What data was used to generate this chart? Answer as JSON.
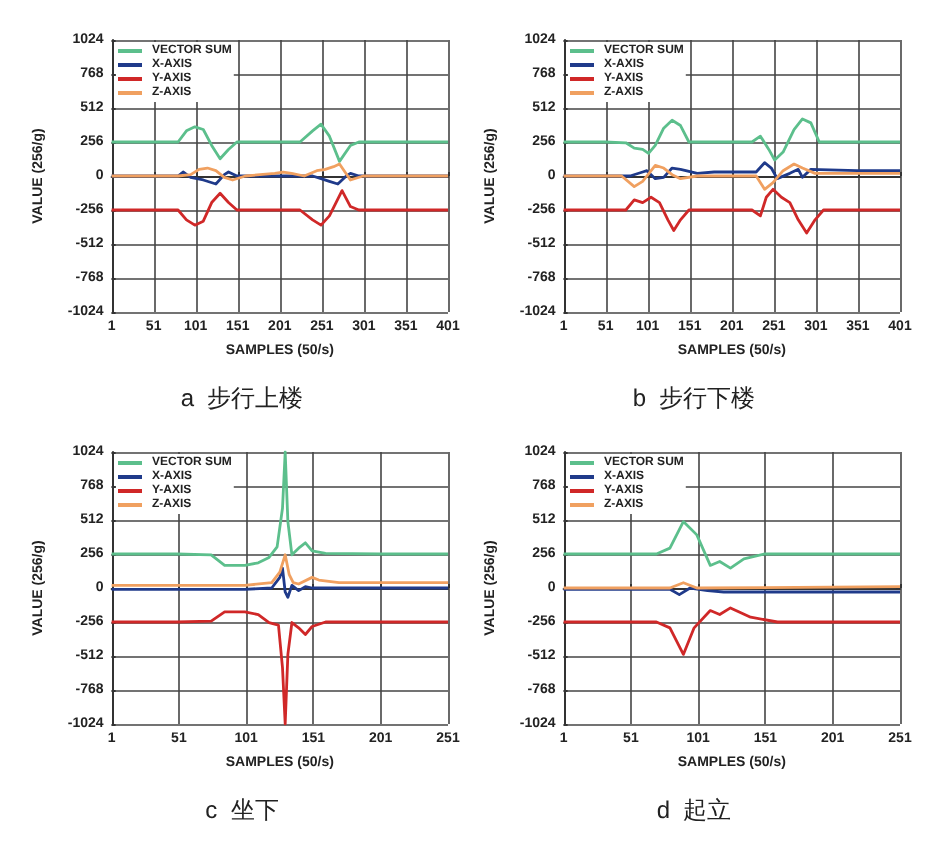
{
  "chart_data": [
    {
      "type": "line",
      "title": "a  步行上楼",
      "xlabel": "SAMPLES (50/s)",
      "ylabel": "VALUE (256/g)",
      "xlim": [
        1,
        401
      ],
      "xticks": [
        1,
        51,
        101,
        151,
        201,
        251,
        301,
        351,
        401
      ],
      "ylim": [
        -1024,
        1024
      ],
      "yticks": [
        -1024,
        -768,
        -512,
        -256,
        0,
        256,
        512,
        768,
        1024
      ],
      "grid": true,
      "legend": "top left",
      "marker": "none",
      "series": [
        {
          "name": "VECTOR SUM",
          "color": "#5cbf8c",
          "x": [
            1,
            50,
            80,
            90,
            100,
            110,
            120,
            130,
            140,
            150,
            200,
            225,
            240,
            250,
            260,
            272,
            285,
            295,
            350,
            401
          ],
          "values": [
            256,
            256,
            256,
            340,
            370,
            350,
            230,
            130,
            200,
            256,
            256,
            256,
            340,
            390,
            300,
            110,
            230,
            256,
            256,
            256
          ]
        },
        {
          "name": "X-AXIS",
          "color": "#1f3a8a",
          "x": [
            1,
            50,
            80,
            86,
            95,
            110,
            125,
            135,
            140,
            150,
            200,
            240,
            250,
            260,
            270,
            280,
            285,
            295,
            350,
            401
          ],
          "values": [
            0,
            0,
            0,
            30,
            -10,
            -30,
            -60,
            10,
            30,
            0,
            0,
            0,
            -20,
            -40,
            -60,
            0,
            20,
            0,
            0,
            0
          ]
        },
        {
          "name": "Y-AXIS",
          "color": "#d02828",
          "x": [
            1,
            50,
            80,
            90,
            100,
            110,
            120,
            130,
            140,
            150,
            200,
            225,
            240,
            250,
            260,
            275,
            285,
            295,
            350,
            401
          ],
          "values": [
            -256,
            -256,
            -256,
            -330,
            -370,
            -340,
            -200,
            -130,
            -200,
            -256,
            -256,
            -256,
            -330,
            -370,
            -300,
            -110,
            -230,
            -256,
            -256,
            -256
          ]
        },
        {
          "name": "Z-AXIS",
          "color": "#f0a060",
          "x": [
            1,
            50,
            80,
            95,
            105,
            115,
            125,
            135,
            145,
            160,
            195,
            205,
            215,
            230,
            245,
            255,
            265,
            272,
            285,
            300,
            401
          ],
          "values": [
            0,
            0,
            0,
            10,
            50,
            60,
            40,
            -10,
            -30,
            0,
            20,
            30,
            20,
            0,
            40,
            50,
            70,
            90,
            -30,
            0,
            0
          ]
        }
      ]
    },
    {
      "type": "line",
      "title": "b  步行下楼",
      "xlabel": "SAMPLES (50/s)",
      "ylabel": "VALUE (256/g)",
      "xlim": [
        1,
        401
      ],
      "xticks": [
        1,
        51,
        101,
        151,
        201,
        251,
        301,
        351,
        401
      ],
      "ylim": [
        -1024,
        1024
      ],
      "yticks": [
        -1024,
        -768,
        -512,
        -256,
        0,
        256,
        512,
        768,
        1024
      ],
      "grid": true,
      "legend": "top left",
      "marker": "none",
      "series": [
        {
          "name": "VECTOR SUM",
          "color": "#5cbf8c",
          "x": [
            1,
            50,
            75,
            85,
            95,
            102,
            110,
            120,
            130,
            140,
            150,
            200,
            225,
            235,
            245,
            252,
            262,
            275,
            285,
            295,
            305,
            350,
            401
          ],
          "values": [
            256,
            256,
            250,
            210,
            200,
            170,
            230,
            360,
            420,
            380,
            256,
            256,
            256,
            300,
            200,
            120,
            180,
            350,
            430,
            400,
            256,
            256,
            256
          ]
        },
        {
          "name": "X-AXIS",
          "color": "#1f3a8a",
          "x": [
            1,
            50,
            80,
            95,
            100,
            110,
            120,
            130,
            140,
            160,
            180,
            230,
            240,
            248,
            255,
            270,
            280,
            285,
            295,
            350,
            401
          ],
          "values": [
            0,
            0,
            0,
            30,
            40,
            -20,
            -10,
            60,
            50,
            20,
            30,
            30,
            100,
            60,
            -20,
            20,
            50,
            -10,
            50,
            40,
            40
          ]
        },
        {
          "name": "Y-AXIS",
          "color": "#d02828",
          "x": [
            1,
            50,
            75,
            85,
            95,
            105,
            115,
            125,
            132,
            140,
            150,
            200,
            225,
            235,
            242,
            250,
            260,
            270,
            280,
            290,
            300,
            310,
            350,
            401
          ],
          "values": [
            -256,
            -256,
            -256,
            -180,
            -200,
            -160,
            -200,
            -330,
            -410,
            -330,
            -256,
            -256,
            -256,
            -300,
            -160,
            -100,
            -160,
            -200,
            -330,
            -430,
            -330,
            -256,
            -256,
            -256
          ]
        },
        {
          "name": "Z-AXIS",
          "color": "#f0a060",
          "x": [
            1,
            50,
            70,
            85,
            95,
            110,
            120,
            130,
            140,
            160,
            200,
            230,
            240,
            250,
            262,
            275,
            285,
            300,
            350,
            401
          ],
          "values": [
            0,
            0,
            0,
            -80,
            -40,
            80,
            60,
            10,
            -20,
            0,
            0,
            0,
            -100,
            -50,
            40,
            90,
            60,
            20,
            20,
            20
          ]
        }
      ]
    },
    {
      "type": "line",
      "title": "c  坐下",
      "xlabel": "SAMPLES (50/s)",
      "ylabel": "VALUE (256/g)",
      "xlim": [
        1,
        251
      ],
      "xticks": [
        1,
        51,
        101,
        151,
        201,
        251
      ],
      "ylim": [
        -1024,
        1024
      ],
      "yticks": [
        -1024,
        -768,
        -512,
        -256,
        0,
        256,
        512,
        768,
        1024
      ],
      "grid": true,
      "legend": "top left",
      "marker": "none",
      "series": [
        {
          "name": "VECTOR SUM",
          "color": "#5cbf8c",
          "x": [
            1,
            50,
            75,
            85,
            100,
            110,
            118,
            124,
            128,
            130,
            132,
            135,
            140,
            145,
            150,
            160,
            200,
            251
          ],
          "values": [
            256,
            256,
            250,
            170,
            170,
            190,
            230,
            310,
            600,
            1024,
            500,
            250,
            300,
            340,
            280,
            260,
            256,
            256
          ]
        },
        {
          "name": "X-AXIS",
          "color": "#1f3a8a",
          "x": [
            1,
            50,
            100,
            120,
            126,
            128,
            130,
            132,
            135,
            140,
            145,
            150,
            251
          ],
          "values": [
            -10,
            -10,
            -10,
            0,
            80,
            150,
            -30,
            -70,
            20,
            -20,
            10,
            0,
            0
          ]
        },
        {
          "name": "Y-AXIS",
          "color": "#d02828",
          "x": [
            1,
            50,
            75,
            85,
            100,
            110,
            118,
            125,
            128,
            130,
            132,
            135,
            140,
            145,
            150,
            160,
            200,
            251
          ],
          "values": [
            -256,
            -256,
            -250,
            -180,
            -180,
            -200,
            -260,
            -280,
            -600,
            -1024,
            -500,
            -260,
            -300,
            -350,
            -290,
            -256,
            -256,
            -256
          ]
        },
        {
          "name": "Z-AXIS",
          "color": "#f0a060",
          "x": [
            1,
            50,
            100,
            120,
            126,
            130,
            133,
            136,
            140,
            150,
            155,
            170,
            251
          ],
          "values": [
            20,
            20,
            20,
            40,
            120,
            250,
            100,
            40,
            30,
            80,
            60,
            40,
            40
          ]
        }
      ]
    },
    {
      "type": "line",
      "title": "d  起立",
      "xlabel": "SAMPLES (50/s)",
      "ylabel": "VALUE (256/g)",
      "xlim": [
        1,
        251
      ],
      "xticks": [
        1,
        51,
        101,
        151,
        201,
        251
      ],
      "ylim": [
        -1024,
        1024
      ],
      "yticks": [
        -1024,
        -768,
        -512,
        -256,
        0,
        256,
        512,
        768,
        1024
      ],
      "grid": true,
      "legend": "top left",
      "marker": "none",
      "series": [
        {
          "name": "VECTOR SUM",
          "color": "#5cbf8c",
          "x": [
            1,
            50,
            70,
            80,
            90,
            100,
            110,
            117,
            125,
            135,
            150,
            200,
            251
          ],
          "values": [
            256,
            256,
            256,
            300,
            500,
            400,
            170,
            200,
            150,
            220,
            256,
            256,
            256
          ]
        },
        {
          "name": "X-AXIS",
          "color": "#1f3a8a",
          "x": [
            1,
            50,
            80,
            87,
            95,
            108,
            120,
            130,
            200,
            251
          ],
          "values": [
            -10,
            -10,
            -10,
            -50,
            0,
            -20,
            -30,
            -30,
            -30,
            -30
          ]
        },
        {
          "name": "Y-AXIS",
          "color": "#d02828",
          "x": [
            1,
            50,
            70,
            80,
            90,
            98,
            110,
            117,
            125,
            140,
            160,
            200,
            251
          ],
          "values": [
            -256,
            -256,
            -256,
            -300,
            -500,
            -300,
            -170,
            -200,
            -150,
            -220,
            -256,
            -256,
            -256
          ]
        },
        {
          "name": "Z-AXIS",
          "color": "#f0a060",
          "x": [
            1,
            50,
            80,
            90,
            100,
            251
          ],
          "values": [
            0,
            0,
            0,
            40,
            0,
            10
          ]
        }
      ]
    }
  ]
}
